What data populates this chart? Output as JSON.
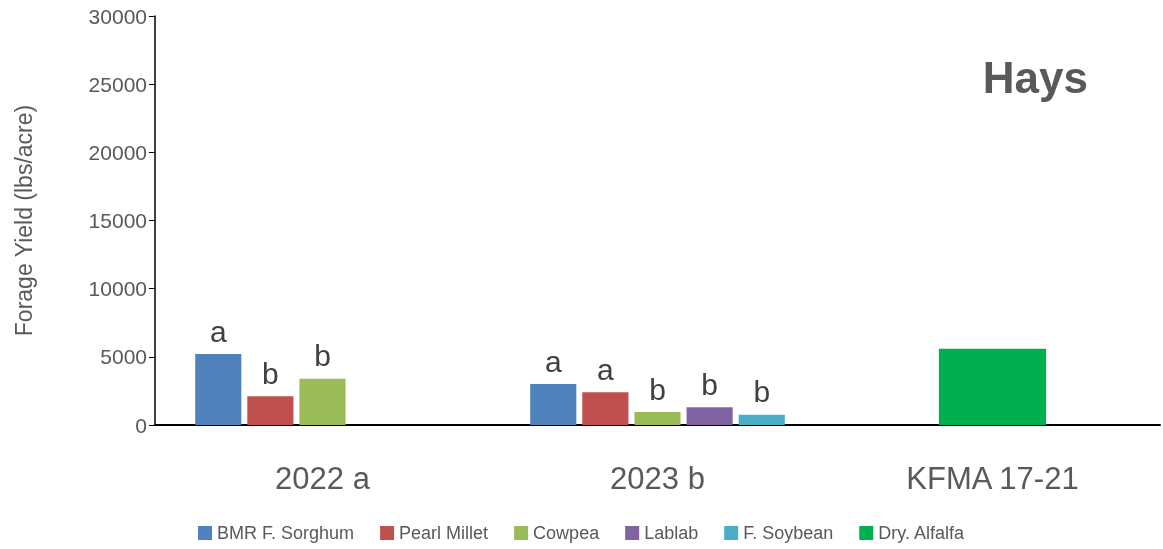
{
  "chart_data": {
    "type": "bar",
    "title": "Hays",
    "ylabel": "Forage Yield (lbs/acre)",
    "categories": [
      "2022 a",
      "2023 b",
      "KFMA 17-21"
    ],
    "ylim": [
      0,
      30000
    ],
    "yticks": [
      0,
      5000,
      10000,
      15000,
      20000,
      25000,
      30000
    ],
    "grid": false,
    "legend": "bottom",
    "series": [
      {
        "name": "BMR F. Sorghum",
        "color": "#4f81bd",
        "values": [
          5200,
          3000,
          null
        ],
        "value_labels": [
          "a",
          "a",
          null
        ]
      },
      {
        "name": "Pearl Millet",
        "color": "#c0504d",
        "values": [
          2100,
          2400,
          null
        ],
        "value_labels": [
          "b",
          "a",
          null
        ]
      },
      {
        "name": "Cowpea",
        "color": "#9bbb59",
        "values": [
          3400,
          950,
          null
        ],
        "value_labels": [
          "b",
          "b",
          null
        ]
      },
      {
        "name": "Lablab",
        "color": "#8064a2",
        "values": [
          null,
          1300,
          null
        ],
        "value_labels": [
          null,
          "b",
          null
        ]
      },
      {
        "name": "F. Soybean",
        "color": "#4bacc6",
        "values": [
          null,
          750,
          null
        ],
        "value_labels": [
          null,
          "b",
          null
        ]
      },
      {
        "name": "Dry. Alfalfa",
        "color": "#00b050",
        "values": [
          null,
          null,
          5600
        ]
      }
    ]
  }
}
